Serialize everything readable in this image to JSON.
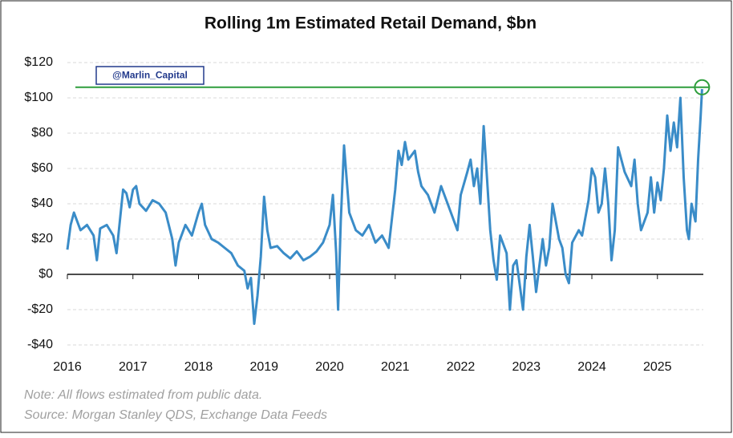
{
  "chart_data": {
    "type": "line",
    "title": "Rolling 1m Estimated Retail Demand, $bn",
    "annotation": "@Marlin_Capital",
    "notes": [
      "Note:  All flows estimated from public data.",
      "Source: Morgan Stanley QDS, Exchange Data Feeds"
    ],
    "color": "#3a8cc8",
    "reference_line": {
      "value": 106,
      "color": "#2e9e3c"
    },
    "grid": true,
    "xlim": [
      2016,
      2025.7
    ],
    "xticks": [
      2016,
      2017,
      2018,
      2019,
      2020,
      2021,
      2022,
      2023,
      2024,
      2025
    ],
    "ylim": [
      -40,
      120
    ],
    "yticks": [
      {
        "value": 120,
        "label": "$120"
      },
      {
        "value": 100,
        "label": "$100"
      },
      {
        "value": 80,
        "label": "$80"
      },
      {
        "value": 60,
        "label": "$60"
      },
      {
        "value": 40,
        "label": "$40"
      },
      {
        "value": 20,
        "label": "$20"
      },
      {
        "value": 0,
        "label": "$0"
      },
      {
        "value": -20,
        "label": "-$20"
      },
      {
        "value": -40,
        "label": "-$40"
      }
    ],
    "x": [
      2016.0,
      2016.05,
      2016.1,
      2016.15,
      2016.2,
      2016.3,
      2016.4,
      2016.45,
      2016.5,
      2016.6,
      2016.7,
      2016.75,
      2016.8,
      2016.85,
      2016.9,
      2016.95,
      2017.0,
      2017.05,
      2017.1,
      2017.2,
      2017.3,
      2017.4,
      2017.5,
      2017.6,
      2017.65,
      2017.7,
      2017.8,
      2017.9,
      2018.0,
      2018.05,
      2018.1,
      2018.2,
      2018.3,
      2018.4,
      2018.5,
      2018.6,
      2018.7,
      2018.75,
      2018.8,
      2018.85,
      2018.9,
      2018.95,
      2019.0,
      2019.05,
      2019.1,
      2019.2,
      2019.3,
      2019.4,
      2019.5,
      2019.6,
      2019.7,
      2019.8,
      2019.9,
      2020.0,
      2020.05,
      2020.1,
      2020.13,
      2020.17,
      2020.22,
      2020.3,
      2020.4,
      2020.5,
      2020.6,
      2020.7,
      2020.8,
      2020.9,
      2021.0,
      2021.05,
      2021.1,
      2021.15,
      2021.2,
      2021.3,
      2021.35,
      2021.4,
      2021.5,
      2021.6,
      2021.7,
      2021.8,
      2021.9,
      2021.95,
      2022.0,
      2022.1,
      2022.15,
      2022.2,
      2022.25,
      2022.3,
      2022.35,
      2022.4,
      2022.45,
      2022.5,
      2022.55,
      2022.6,
      2022.7,
      2022.75,
      2022.8,
      2022.85,
      2022.95,
      2023.0,
      2023.05,
      2023.1,
      2023.15,
      2023.2,
      2023.25,
      2023.3,
      2023.35,
      2023.4,
      2023.5,
      2023.55,
      2023.6,
      2023.65,
      2023.7,
      2023.8,
      2023.85,
      2023.95,
      2024.0,
      2024.05,
      2024.1,
      2024.15,
      2024.2,
      2024.25,
      2024.3,
      2024.35,
      2024.4,
      2024.5,
      2024.6,
      2024.65,
      2024.7,
      2024.75,
      2024.8,
      2024.85,
      2024.9,
      2024.95,
      2025.0,
      2025.05,
      2025.1,
      2025.15,
      2025.2,
      2025.25,
      2025.3,
      2025.35,
      2025.4,
      2025.45,
      2025.48,
      2025.52,
      2025.58,
      2025.62,
      2025.66,
      2025.68
    ],
    "values": [
      14,
      28,
      35,
      30,
      25,
      28,
      22,
      8,
      26,
      28,
      22,
      12,
      30,
      48,
      46,
      38,
      48,
      50,
      40,
      36,
      42,
      40,
      35,
      20,
      5,
      18,
      28,
      22,
      35,
      40,
      28,
      20,
      18,
      15,
      12,
      5,
      2,
      -8,
      -2,
      -28,
      -12,
      10,
      44,
      25,
      15,
      16,
      12,
      9,
      13,
      8,
      10,
      13,
      18,
      28,
      45,
      12,
      -20,
      30,
      73,
      35,
      25,
      22,
      28,
      18,
      22,
      15,
      48,
      70,
      62,
      75,
      65,
      70,
      58,
      50,
      45,
      35,
      50,
      40,
      30,
      25,
      45,
      58,
      65,
      50,
      60,
      40,
      84,
      55,
      25,
      8,
      -3,
      22,
      12,
      -20,
      5,
      8,
      -20,
      10,
      28,
      10,
      -10,
      5,
      20,
      5,
      15,
      40,
      20,
      15,
      0,
      -5,
      18,
      25,
      22,
      42,
      60,
      55,
      35,
      40,
      60,
      40,
      8,
      25,
      72,
      58,
      50,
      65,
      40,
      25,
      30,
      35,
      55,
      35,
      52,
      42,
      60,
      90,
      70,
      86,
      72,
      100,
      55,
      25,
      20,
      40,
      30,
      65,
      90,
      105
    ]
  }
}
